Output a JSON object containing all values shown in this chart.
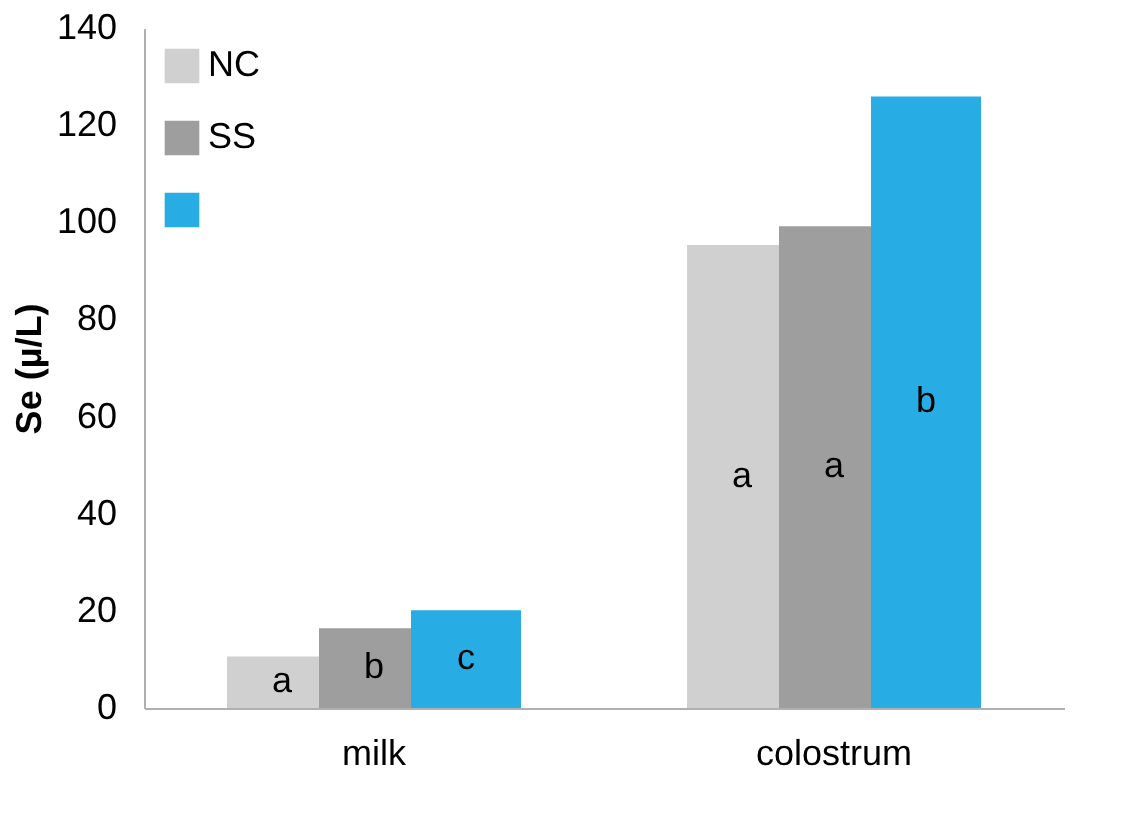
{
  "chart_data": {
    "type": "bar",
    "ylabel": "Se (µ/L)",
    "categories": [
      "milk",
      "colostrum"
    ],
    "series": [
      {
        "name": "NC",
        "color": "#d0d0d0",
        "values": [
          10.6,
          95.3
        ]
      },
      {
        "name": "SS",
        "color": "#9e9e9e",
        "values": [
          16.4,
          99.2
        ]
      },
      {
        "color": "#27ace3",
        "values": [
          20.1,
          125.9
        ]
      }
    ],
    "ylim": [
      0,
      140
    ],
    "yticks": [
      0,
      20,
      40,
      60,
      80,
      100,
      120,
      140
    ],
    "grid": false,
    "legend": "top left",
    "annotations": [
      "a",
      "b",
      "c",
      "a",
      "a",
      "b"
    ]
  }
}
